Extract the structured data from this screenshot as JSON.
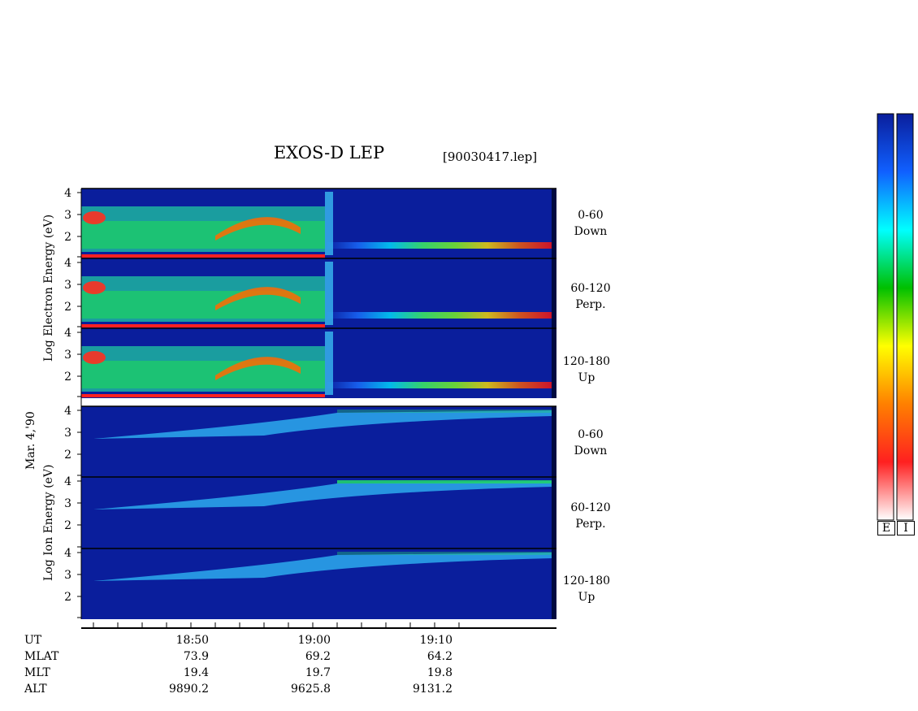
{
  "title": "EXOS-D LEP",
  "file_label": "[90030417.lep]",
  "date_label": "Mar. 4,'90",
  "electron_axis_label": "Log  Electron  Energy (eV)",
  "ion_axis_label": "Log  Ion  Energy (eV)",
  "colorbar_labels": [
    "E",
    "I"
  ],
  "colors": {
    "background": "#0a1e9c",
    "scale": [
      "#ffffff",
      "#ff2020",
      "#ff8000",
      "#ffff00",
      "#00c000",
      "#00ffff",
      "#1060ff",
      "#0a1e9c"
    ]
  },
  "panels": [
    {
      "group": "electron",
      "range_line1": "0-60",
      "range_line2": "Down"
    },
    {
      "group": "electron",
      "range_line1": "60-120",
      "range_line2": "Perp."
    },
    {
      "group": "electron",
      "range_line1": "120-180",
      "range_line2": "Up"
    },
    {
      "group": "ion",
      "range_line1": "0-60",
      "range_line2": "Down"
    },
    {
      "group": "ion",
      "range_line1": "60-120",
      "range_line2": "Perp."
    },
    {
      "group": "ion",
      "range_line1": "120-180",
      "range_line2": "Up"
    }
  ],
  "table": {
    "row_labels": [
      "UT",
      "MLAT",
      "MLT",
      "ALT"
    ],
    "columns": [
      {
        "UT": "18:50",
        "MLAT": "73.9",
        "MLT": "19.4",
        "ALT": "9890.2"
      },
      {
        "UT": "19:00",
        "MLAT": "69.2",
        "MLT": "19.7",
        "ALT": "9625.8"
      },
      {
        "UT": "19:10",
        "MLAT": "64.2",
        "MLT": "19.8",
        "ALT": "9131.2"
      }
    ]
  },
  "chart_data": {
    "type": "heatmap",
    "title": "EXOS-D LEP",
    "subtitle": "[90030417.lep]",
    "x_label": "UT",
    "x_tick_labels": [
      "18:50",
      "19:00",
      "19:10"
    ],
    "y_tick_labels": [
      "2",
      "3",
      "4"
    ],
    "ylim": [
      1,
      4.2
    ],
    "y_scale": "log energy (eV)",
    "panels": [
      "0-60 Down",
      "60-120 Perp.",
      "120-180 Up",
      "0-60 Down",
      "60-120 Perp.",
      "120-180 Up"
    ],
    "groups": [
      "Electron",
      "Ion"
    ],
    "colorbar": [
      "E",
      "I"
    ]
  }
}
